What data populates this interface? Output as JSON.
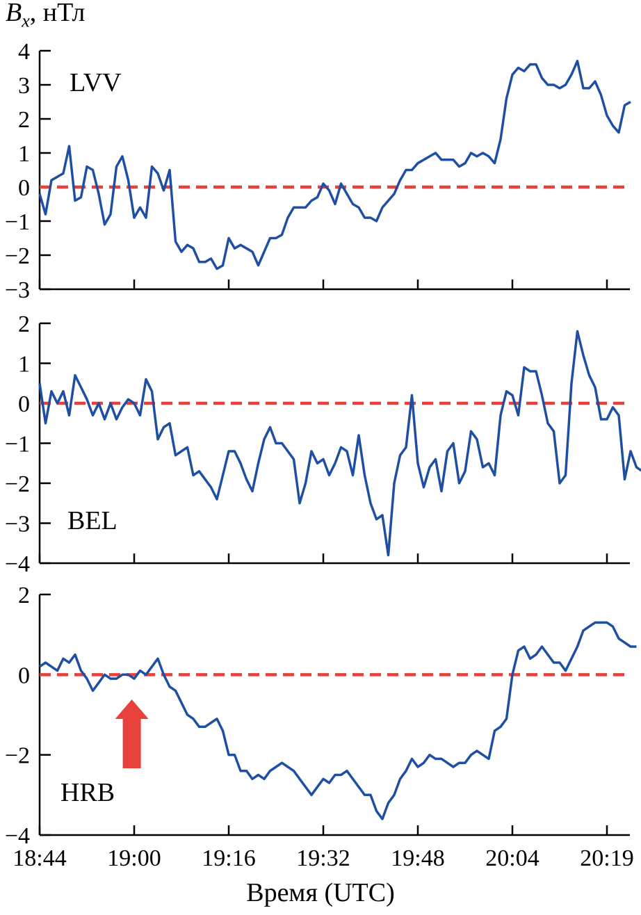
{
  "figure": {
    "y_axis_symbol": "B",
    "y_axis_subscript": "x",
    "y_axis_unit": ", нТл",
    "x_axis_label": "Время (UTC)"
  },
  "chart_data": {
    "type": "line",
    "x_unit": "minutes since 18:44 UTC",
    "x_ticks": [
      {
        "label": "18:44",
        "value": 0
      },
      {
        "label": "19:00",
        "value": 16
      },
      {
        "label": "19:16",
        "value": 32
      },
      {
        "label": "19:32",
        "value": 48
      },
      {
        "label": "19:48",
        "value": 64
      },
      {
        "label": "20:04",
        "value": 80
      },
      {
        "label": "20:19",
        "value": 96
      }
    ],
    "xlim": [
      0,
      100
    ],
    "colors": {
      "series": "#1f4fa3",
      "zero_line": "#e8413c",
      "arrow": "#e8413c"
    },
    "panels": [
      {
        "station": "LVV",
        "ylim": [
          -3,
          4
        ],
        "yticks": [
          -3,
          -2,
          -1,
          0,
          1,
          2,
          3,
          4
        ],
        "values": [
          -0.2,
          -0.8,
          0.2,
          0.3,
          0.4,
          1.2,
          -0.4,
          -0.3,
          0.6,
          0.5,
          -0.2,
          -1.1,
          -0.8,
          0.6,
          0.9,
          0.2,
          -0.9,
          -0.6,
          -0.9,
          0.6,
          0.4,
          -0.1,
          0.5,
          -1.6,
          -1.9,
          -1.7,
          -1.8,
          -2.2,
          -2.2,
          -2.1,
          -2.4,
          -2.3,
          -1.5,
          -1.8,
          -1.7,
          -1.8,
          -1.9,
          -2.3,
          -1.9,
          -1.5,
          -1.5,
          -1.4,
          -0.9,
          -0.6,
          -0.6,
          -0.6,
          -0.4,
          -0.3,
          0.1,
          -0.1,
          -0.5,
          0.1,
          -0.2,
          -0.5,
          -0.6,
          -0.9,
          -0.9,
          -1.0,
          -0.6,
          -0.4,
          -0.2,
          0.2,
          0.5,
          0.5,
          0.7,
          0.8,
          0.9,
          1.0,
          0.8,
          0.8,
          0.8,
          0.6,
          0.7,
          1.0,
          0.9,
          1.0,
          0.9,
          0.7,
          1.4,
          2.6,
          3.3,
          3.5,
          3.4,
          3.6,
          3.6,
          3.2,
          3.0,
          3.0,
          2.9,
          3.0,
          3.3,
          3.7,
          2.9,
          2.9,
          3.1,
          2.7,
          2.1,
          1.8,
          1.6,
          2.4,
          2.5
        ]
      },
      {
        "station": "BEL",
        "ylim": [
          -4,
          2
        ],
        "yticks": [
          -4,
          -3,
          -2,
          -1,
          0,
          1,
          2
        ],
        "values": [
          0.5,
          -0.5,
          0.3,
          0.0,
          0.3,
          -0.3,
          0.7,
          0.4,
          0.1,
          -0.3,
          0.0,
          -0.4,
          0.0,
          -0.4,
          -0.1,
          0.1,
          0.0,
          -0.3,
          0.6,
          0.3,
          -0.9,
          -0.6,
          -0.5,
          -1.3,
          -1.2,
          -1.1,
          -1.8,
          -1.7,
          -1.9,
          -2.1,
          -2.4,
          -1.8,
          -1.2,
          -1.2,
          -1.5,
          -1.9,
          -2.2,
          -1.5,
          -0.9,
          -0.6,
          -1.0,
          -1.0,
          -1.2,
          -1.4,
          -2.5,
          -2.0,
          -1.2,
          -1.5,
          -1.4,
          -1.8,
          -1.5,
          -1.1,
          -1.2,
          -1.8,
          -0.8,
          -1.8,
          -2.5,
          -2.9,
          -2.8,
          -3.8,
          -2.0,
          -1.3,
          -1.1,
          0.2,
          -1.5,
          -2.1,
          -1.6,
          -1.4,
          -2.2,
          -1.2,
          -1.0,
          -2.0,
          -1.7,
          -0.7,
          -0.9,
          -1.6,
          -1.5,
          -1.8,
          -0.3,
          0.3,
          0.2,
          -0.3,
          0.9,
          0.8,
          0.8,
          0.2,
          -0.5,
          -0.7,
          -2.0,
          -1.8,
          0.5,
          1.8,
          1.2,
          0.7,
          0.4,
          -0.4,
          -0.4,
          -0.1,
          -0.3,
          -1.9,
          -1.2,
          -1.6,
          -1.7
        ]
      },
      {
        "station": "HRB",
        "ylim": [
          -4,
          2
        ],
        "yticks": [
          -4,
          -2,
          0,
          2
        ],
        "values": [
          0.2,
          0.3,
          0.2,
          0.1,
          0.4,
          0.3,
          0.5,
          0.1,
          -0.1,
          -0.4,
          -0.2,
          0.0,
          -0.1,
          -0.1,
          0.0,
          0.0,
          -0.1,
          0.1,
          0.0,
          0.2,
          0.4,
          0.0,
          -0.3,
          -0.4,
          -0.7,
          -1.0,
          -1.1,
          -1.3,
          -1.3,
          -1.2,
          -1.1,
          -1.4,
          -2.0,
          -2.0,
          -2.4,
          -2.4,
          -2.6,
          -2.5,
          -2.6,
          -2.4,
          -2.3,
          -2.2,
          -2.3,
          -2.4,
          -2.6,
          -2.8,
          -3.0,
          -2.8,
          -2.6,
          -2.7,
          -2.5,
          -2.5,
          -2.4,
          -2.6,
          -2.8,
          -3.0,
          -3.0,
          -3.4,
          -3.6,
          -3.2,
          -3.0,
          -2.6,
          -2.4,
          -2.1,
          -2.3,
          -2.2,
          -2.0,
          -2.1,
          -2.1,
          -2.2,
          -2.3,
          -2.2,
          -2.2,
          -2.0,
          -1.9,
          -2.0,
          -2.1,
          -1.4,
          -1.3,
          -1.1,
          0.0,
          0.6,
          0.7,
          0.4,
          0.5,
          0.7,
          0.5,
          0.3,
          0.3,
          0.1,
          0.4,
          0.7,
          1.1,
          1.2,
          1.3,
          1.3,
          1.3,
          1.2,
          0.9,
          0.8,
          0.7,
          0.7
        ],
        "arrow_x": 15.6,
        "arrow_direction": "up"
      }
    ]
  }
}
